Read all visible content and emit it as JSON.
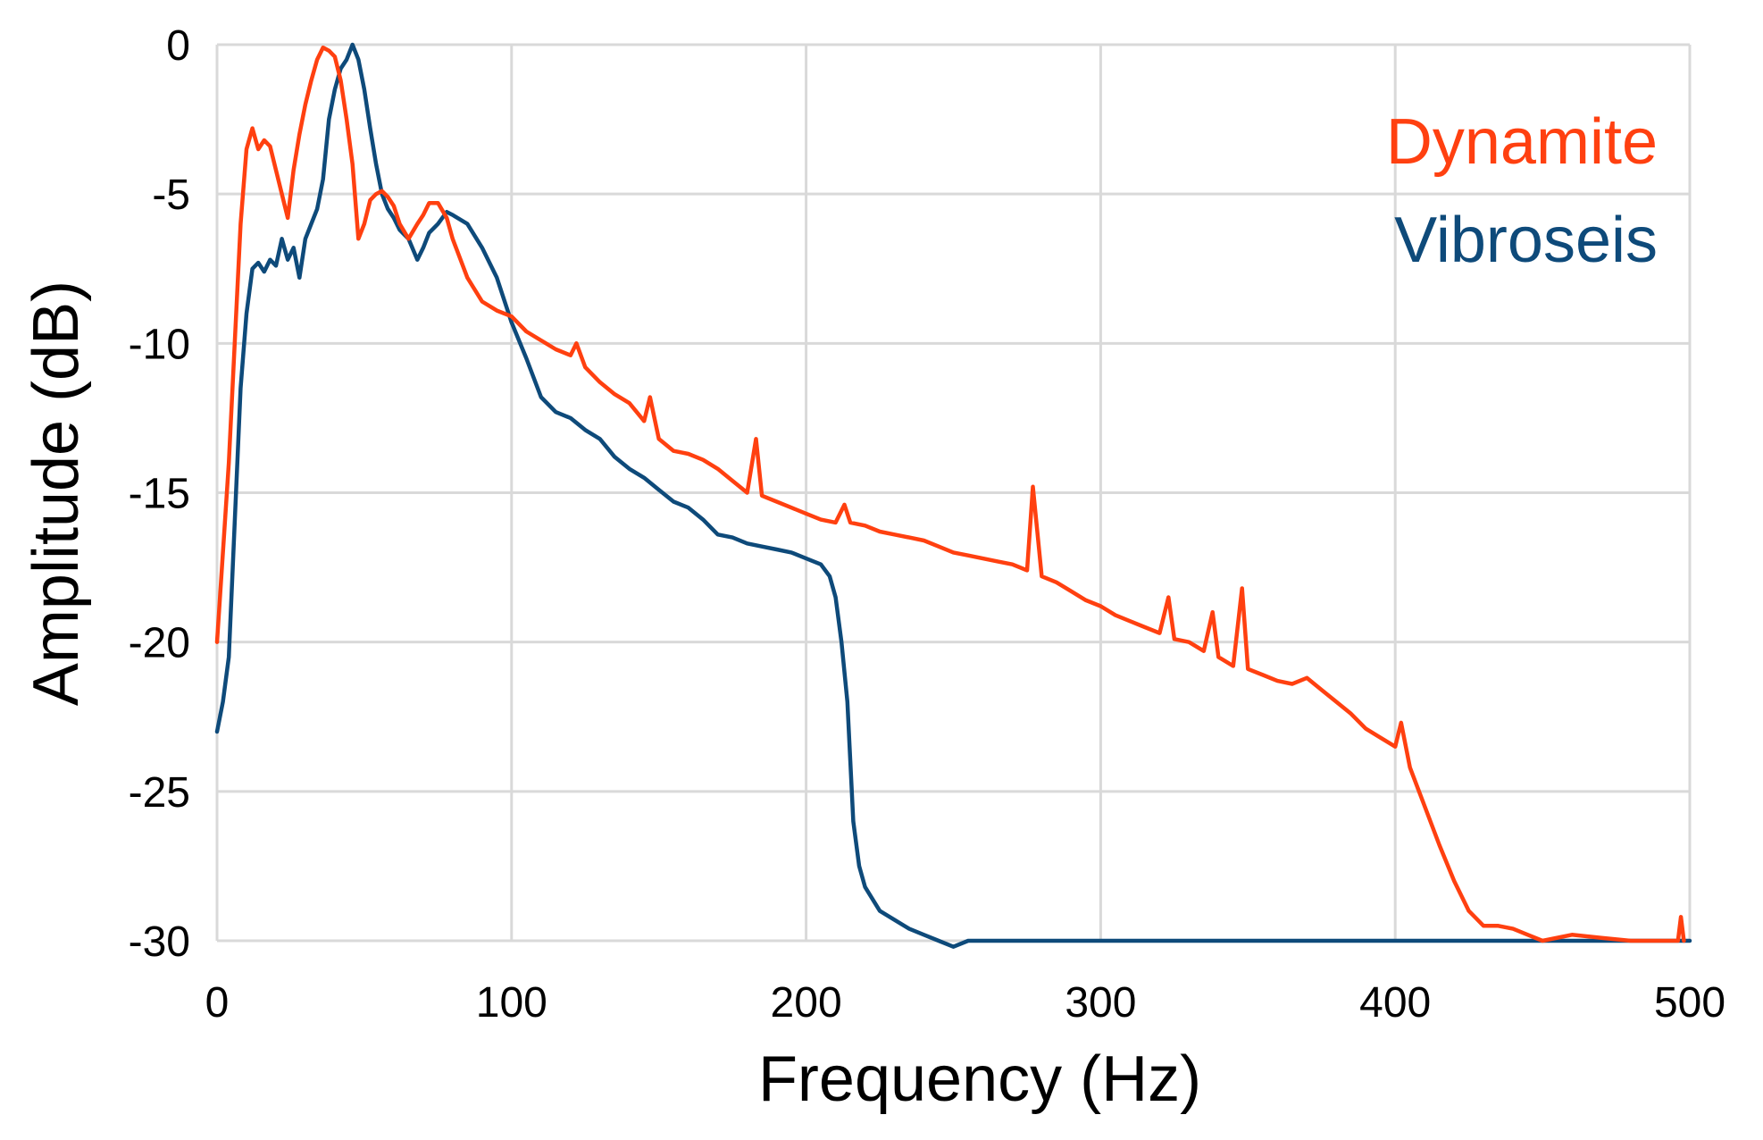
{
  "chart_data": {
    "type": "line",
    "title": "",
    "xlabel": "Frequency (Hz)",
    "ylabel": "Amplitude (dB)",
    "xlim": [
      0,
      500
    ],
    "ylim": [
      -30,
      0
    ],
    "x_ticks": [
      0,
      100,
      200,
      300,
      400,
      500
    ],
    "y_ticks": [
      0,
      -5,
      -10,
      -15,
      -20,
      -25,
      -30
    ],
    "x_tick_labels": [
      "0",
      "100",
      "200",
      "300",
      "400",
      "500"
    ],
    "y_tick_labels": [
      "0",
      "-5",
      "-10",
      "-15",
      "-20",
      "-25",
      "-30"
    ],
    "grid": true,
    "legend_position": "top-right",
    "series": [
      {
        "name": "Dynamite",
        "color": "#ff4010",
        "x": [
          0,
          2,
          4,
          6,
          8,
          10,
          12,
          14,
          16,
          18,
          20,
          22,
          24,
          26,
          28,
          30,
          32,
          34,
          36,
          38,
          40,
          42,
          44,
          46,
          48,
          50,
          52,
          54,
          56,
          58,
          60,
          62,
          65,
          68,
          70,
          72,
          75,
          78,
          80,
          85,
          90,
          95,
          100,
          105,
          110,
          115,
          120,
          122,
          125,
          130,
          135,
          140,
          145,
          147,
          150,
          155,
          160,
          165,
          170,
          175,
          180,
          183,
          185,
          190,
          195,
          200,
          205,
          210,
          213,
          215,
          220,
          225,
          230,
          235,
          240,
          245,
          250,
          255,
          260,
          265,
          270,
          275,
          277,
          280,
          285,
          290,
          295,
          300,
          305,
          310,
          315,
          320,
          323,
          325,
          330,
          335,
          338,
          340,
          345,
          348,
          350,
          355,
          360,
          365,
          370,
          375,
          380,
          385,
          390,
          395,
          400,
          402,
          405,
          410,
          415,
          420,
          425,
          430,
          435,
          440,
          445,
          450,
          460,
          470,
          480,
          490,
          496,
          497,
          498
        ],
        "values": [
          -20,
          -17,
          -14,
          -10,
          -6,
          -3.5,
          -2.8,
          -3.5,
          -3.2,
          -3.4,
          -4.2,
          -5,
          -5.8,
          -4.2,
          -3,
          -2,
          -1.2,
          -0.5,
          -0.1,
          -0.2,
          -0.4,
          -1.2,
          -2.5,
          -4,
          -6.5,
          -6,
          -5.2,
          -5,
          -4.9,
          -5.1,
          -5.4,
          -6,
          -6.5,
          -6,
          -5.7,
          -5.3,
          -5.3,
          -5.8,
          -6.5,
          -7.8,
          -8.6,
          -8.9,
          -9.1,
          -9.6,
          -9.9,
          -10.2,
          -10.4,
          -10,
          -10.8,
          -11.3,
          -11.7,
          -12,
          -12.6,
          -11.8,
          -13.2,
          -13.6,
          -13.7,
          -13.9,
          -14.2,
          -14.6,
          -15,
          -13.2,
          -15.1,
          -15.3,
          -15.5,
          -15.7,
          -15.9,
          -16,
          -15.4,
          -16,
          -16.1,
          -16.3,
          -16.4,
          -16.5,
          -16.6,
          -16.8,
          -17,
          -17.1,
          -17.2,
          -17.3,
          -17.4,
          -17.6,
          -14.8,
          -17.8,
          -18,
          -18.3,
          -18.6,
          -18.8,
          -19.1,
          -19.3,
          -19.5,
          -19.7,
          -18.5,
          -19.9,
          -20,
          -20.3,
          -19,
          -20.5,
          -20.8,
          -18.2,
          -20.9,
          -21.1,
          -21.3,
          -21.4,
          -21.2,
          -21.6,
          -22,
          -22.4,
          -22.9,
          -23.2,
          -23.5,
          -22.7,
          -24.2,
          -25.5,
          -26.8,
          -28,
          -29,
          -29.5,
          -29.5,
          -29.6,
          -29.8,
          -30,
          -29.8,
          -29.9,
          -30,
          -30,
          -30,
          -29.2,
          -30
        ]
      },
      {
        "name": "Vibroseis",
        "color": "#0e4a7a",
        "x": [
          0,
          2,
          4,
          6,
          8,
          10,
          12,
          14,
          16,
          18,
          20,
          22,
          24,
          26,
          28,
          30,
          32,
          34,
          36,
          38,
          40,
          42,
          44,
          46,
          48,
          50,
          52,
          54,
          56,
          58,
          60,
          62,
          65,
          68,
          70,
          72,
          75,
          78,
          80,
          85,
          90,
          95,
          100,
          105,
          110,
          115,
          120,
          125,
          130,
          135,
          140,
          145,
          150,
          155,
          160,
          165,
          170,
          175,
          180,
          185,
          190,
          195,
          200,
          205,
          208,
          210,
          212,
          214,
          215,
          216,
          218,
          220,
          225,
          230,
          235,
          240,
          245,
          250,
          255,
          258,
          300,
          350,
          400,
          450,
          500
        ],
        "values": [
          -23,
          -22,
          -20.5,
          -16,
          -11.5,
          -9,
          -7.5,
          -7.3,
          -7.6,
          -7.2,
          -7.4,
          -6.5,
          -7.2,
          -6.8,
          -7.8,
          -6.5,
          -6,
          -5.5,
          -4.5,
          -2.5,
          -1.5,
          -0.8,
          -0.5,
          0,
          -0.5,
          -1.5,
          -2.8,
          -4,
          -5,
          -5.5,
          -5.8,
          -6.2,
          -6.5,
          -7.2,
          -6.8,
          -6.3,
          -6,
          -5.6,
          -5.7,
          -6,
          -6.8,
          -7.8,
          -9.3,
          -10.5,
          -11.8,
          -12.3,
          -12.5,
          -12.9,
          -13.2,
          -13.8,
          -14.2,
          -14.5,
          -14.9,
          -15.3,
          -15.5,
          -15.9,
          -16.4,
          -16.5,
          -16.7,
          -16.8,
          -16.9,
          -17,
          -17.2,
          -17.4,
          -17.8,
          -18.5,
          -20,
          -22,
          -24,
          -26,
          -27.5,
          -28.2,
          -29,
          -29.3,
          -29.6,
          -29.8,
          -30,
          -30.2,
          -30,
          -30,
          -30,
          -30,
          -30,
          -30,
          -30
        ]
      }
    ]
  }
}
